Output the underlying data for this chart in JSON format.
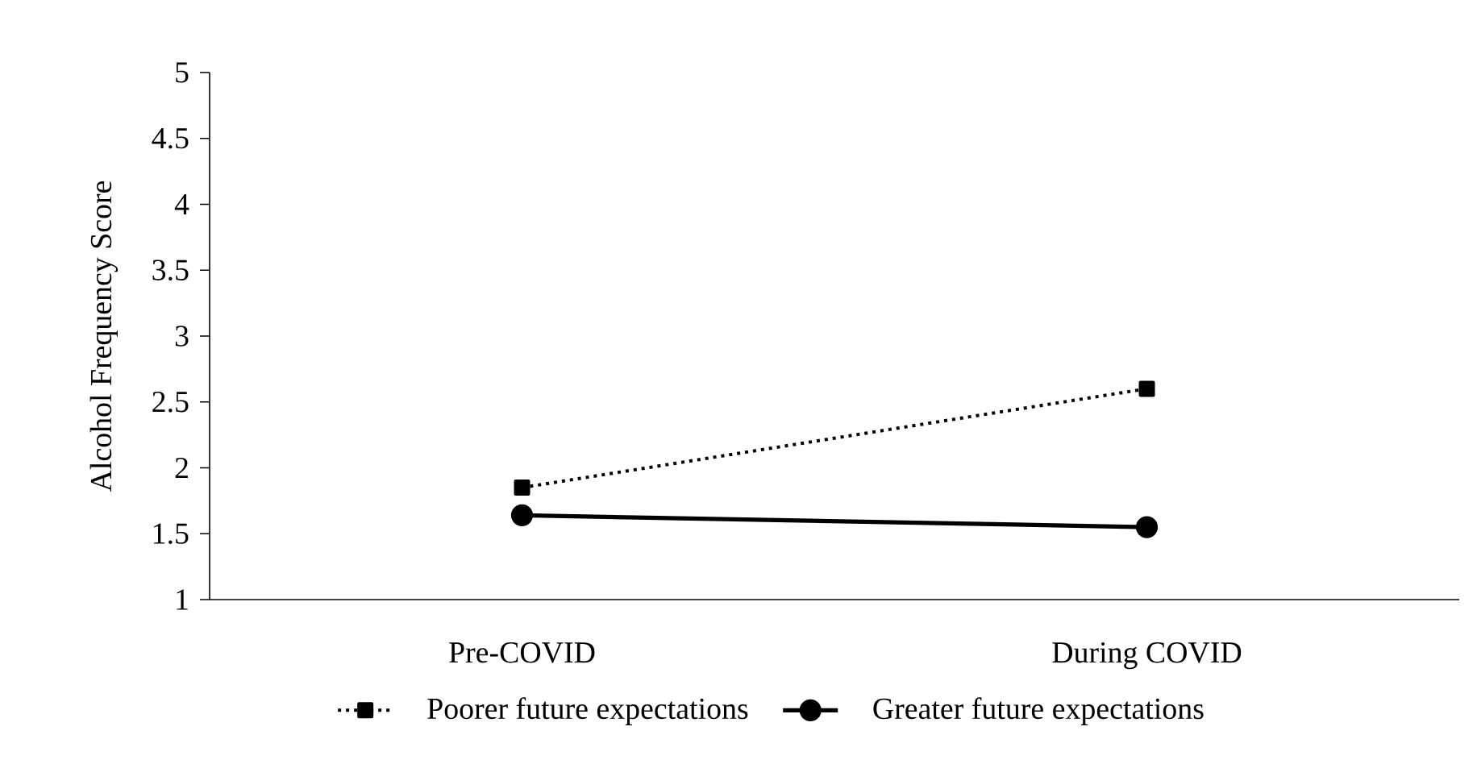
{
  "chart_data": {
    "type": "line",
    "ylabel": "Alcohol Frequency Score",
    "categories": [
      "Pre-COVID",
      "During COVID"
    ],
    "series": [
      {
        "name": "Poorer future expectations",
        "color": "#000000",
        "values": [
          1.85,
          2.6
        ],
        "marker": "square",
        "line_style": "dotted"
      },
      {
        "name": "Greater future expectations",
        "color": "#000000",
        "values": [
          1.64,
          1.55
        ],
        "marker": "circle",
        "line_style": "solid"
      }
    ],
    "ylim": [
      1,
      5
    ],
    "yticks": [
      1,
      1.5,
      2,
      2.5,
      3,
      3.5,
      4,
      4.5,
      5
    ],
    "legend": "bottom"
  }
}
